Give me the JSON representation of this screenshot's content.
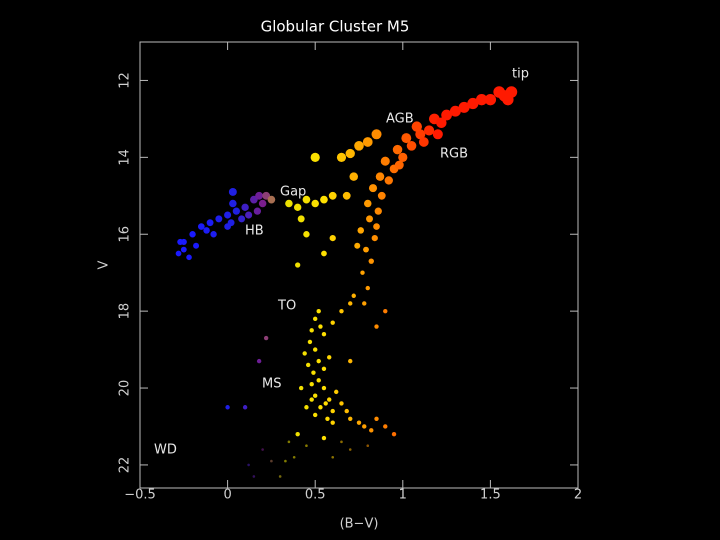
{
  "chart_data": {
    "type": "scatter",
    "title": "Globular Cluster M5",
    "x_label": "(B−V)",
    "y_label": "V",
    "xlim": [
      -0.5,
      2
    ],
    "ylim": [
      22.6,
      11
    ],
    "xticks": [
      {
        "value": -0.5,
        "label": "−0.5"
      },
      0,
      0.5,
      1,
      1.5,
      2
    ],
    "yticks": [
      12,
      14,
      16,
      18,
      20,
      22
    ],
    "annotations": [
      "tip",
      "AGB",
      "RGB",
      "Gap",
      "HB",
      "TO",
      "MS",
      "WD"
    ],
    "color_stops": [
      {
        "value": -0.2,
        "color": "#1a1aff"
      },
      {
        "value": 0.05,
        "color": "#2020e0"
      },
      {
        "value": 0.2,
        "color": "#7a1e8c"
      },
      {
        "value": 0.32,
        "color": "#e8e000"
      },
      {
        "value": 0.55,
        "color": "#ffe000"
      },
      {
        "value": 0.8,
        "color": "#ff9a00"
      },
      {
        "value": 1.0,
        "color": "#ff6000"
      },
      {
        "value": 1.2,
        "color": "#ff1a00"
      }
    ],
    "x": [
      0.78,
      0.8,
      0.77,
      0.82,
      0.79,
      0.84,
      0.76,
      0.81,
      0.86,
      0.8,
      0.88,
      0.83,
      0.92,
      0.87,
      0.95,
      0.9,
      1.0,
      0.97,
      1.05,
      1.02,
      1.1,
      1.08,
      1.15,
      1.18,
      1.25,
      1.22,
      1.3,
      1.35,
      1.4,
      1.45,
      1.5,
      1.55,
      1.58,
      1.62,
      1.6,
      1.12,
      1.2,
      0.98,
      0.85,
      0.74,
      0.65,
      0.7,
      0.72,
      0.68,
      0.75,
      0.8,
      0.85,
      0.55,
      0.6,
      0.65,
      0.7,
      0.72,
      0.9,
      0.85,
      0.7,
      0.45,
      0.5,
      0.55,
      0.6,
      0.4,
      0.35,
      0.42,
      0.5,
      0.45,
      0.6,
      0.55,
      0.4,
      -0.25,
      -0.2,
      -0.15,
      -0.1,
      -0.05,
      0.0,
      0.05,
      0.1,
      -0.25,
      -0.28,
      -0.22,
      -0.18,
      -0.12,
      -0.08,
      0.02,
      0.08,
      0.03,
      0.12,
      0.15,
      0.18,
      0.2,
      0.22,
      0.17,
      0.25,
      0.03,
      -0.27,
      0.0,
      0.52,
      0.5,
      0.48,
      0.53,
      0.47,
      0.5,
      0.44,
      0.46,
      0.49,
      0.52,
      0.48,
      0.55,
      0.5,
      0.58,
      0.53,
      0.6,
      0.56,
      0.62,
      0.65,
      0.68,
      0.7,
      0.75,
      0.78,
      0.82,
      0.9,
      0.95,
      0.6,
      0.5,
      0.45,
      0.42,
      0.55,
      0.58,
      0.4,
      0.45,
      0.55,
      0.65,
      0.7,
      0.35,
      0.38,
      0.33,
      0.6,
      0.8,
      0.85,
      0.48,
      0.52,
      0.57,
      0.1,
      0.0,
      0.2,
      0.12,
      0.25,
      0.3,
      0.18,
      0.22,
      0.15
    ],
    "y": [
      17.8,
      17.4,
      17.0,
      16.7,
      16.4,
      16.1,
      15.9,
      15.6,
      15.4,
      15.2,
      15.0,
      14.8,
      14.6,
      14.5,
      14.3,
      14.1,
      14.0,
      13.8,
      13.7,
      13.5,
      13.4,
      13.2,
      13.3,
      13.0,
      12.9,
      13.1,
      12.8,
      12.7,
      12.6,
      12.5,
      12.5,
      12.3,
      12.4,
      12.3,
      12.5,
      13.6,
      13.4,
      14.2,
      15.8,
      16.3,
      14.0,
      13.9,
      14.5,
      15.0,
      13.7,
      13.6,
      13.4,
      18.6,
      18.3,
      18.0,
      17.8,
      17.6,
      18.0,
      18.4,
      19.3,
      15.1,
      15.2,
      15.1,
      15.0,
      15.3,
      15.2,
      15.6,
      14.0,
      16.0,
      16.1,
      16.5,
      16.8,
      16.2,
      16.0,
      15.8,
      15.7,
      15.6,
      15.5,
      15.4,
      15.3,
      16.4,
      16.5,
      16.6,
      16.3,
      15.9,
      16.0,
      15.7,
      15.6,
      15.2,
      15.5,
      15.1,
      15.0,
      15.2,
      15.0,
      15.4,
      15.1,
      14.9,
      16.2,
      15.8,
      18.0,
      18.2,
      18.5,
      18.4,
      18.8,
      19.0,
      19.1,
      19.4,
      19.6,
      19.8,
      19.9,
      20.0,
      20.2,
      20.3,
      20.5,
      20.6,
      20.4,
      20.1,
      20.4,
      20.6,
      20.8,
      20.9,
      21.0,
      21.1,
      21.0,
      21.2,
      20.9,
      20.7,
      20.5,
      20.0,
      19.5,
      19.2,
      21.2,
      21.5,
      21.3,
      21.4,
      21.6,
      21.4,
      21.8,
      21.9,
      21.8,
      21.5,
      20.8,
      20.3,
      19.3,
      20.8,
      20.5,
      20.5,
      21.6,
      22.0,
      21.9,
      22.3,
      19.3,
      18.7,
      22.3
    ]
  }
}
